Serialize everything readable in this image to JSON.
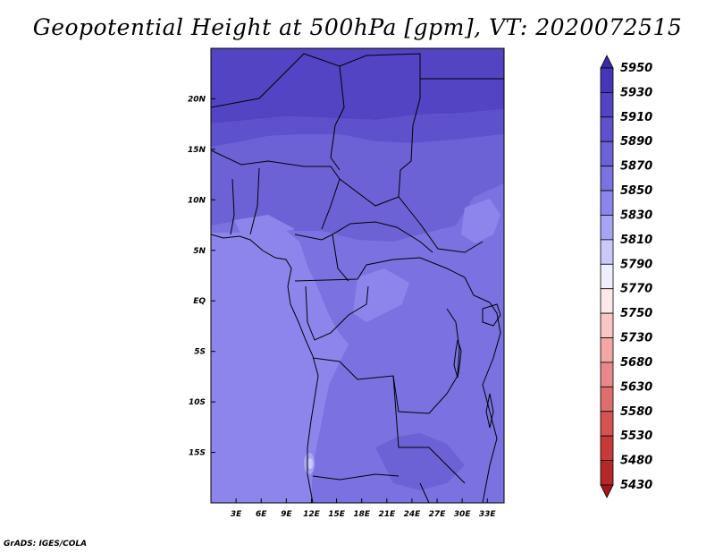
{
  "title": "Geopotential Height at 500hPa [gpm], VT: 2020072515",
  "credit": "GrADS: IGES/COLA",
  "map": {
    "lon_range": [
      0,
      35
    ],
    "lat_range": [
      -20,
      25
    ],
    "x_ticks": [
      "3E",
      "6E",
      "9E",
      "12E",
      "15E",
      "18E",
      "21E",
      "24E",
      "27E",
      "30E",
      "33E"
    ],
    "x_tick_values": [
      3,
      6,
      9,
      12,
      15,
      18,
      21,
      24,
      27,
      30,
      33
    ],
    "y_ticks": [
      "20N",
      "15N",
      "10N",
      "5N",
      "EQ",
      "5S",
      "10S",
      "15S"
    ],
    "y_tick_values": [
      20,
      15,
      10,
      5,
      0,
      -5,
      -10,
      -15
    ]
  },
  "colorbar": {
    "levels": [
      "5950",
      "5930",
      "5910",
      "5890",
      "5870",
      "5850",
      "5830",
      "5810",
      "5790",
      "5770",
      "5750",
      "5730",
      "5680",
      "5630",
      "5580",
      "5530",
      "5480",
      "5430"
    ],
    "colors": [
      "#3a2aa8",
      "#4636b8",
      "#5244c2",
      "#5e52cc",
      "#6c62d6",
      "#7a72e0",
      "#8c86ec",
      "#a8a4f4",
      "#cbc9fa",
      "#eeeefe",
      "#fde8e8",
      "#f9c6c6",
      "#f2a6a6",
      "#e98888",
      "#df6e6e",
      "#d45454",
      "#c73a3a",
      "#b52828",
      "#a01818"
    ]
  }
}
